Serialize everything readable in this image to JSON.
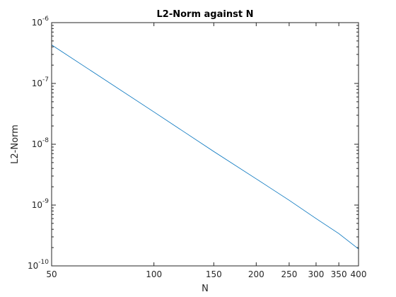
{
  "chart_data": {
    "type": "line",
    "title": "L2-Norm against N",
    "xlabel": "N",
    "ylabel": "L2-Norm",
    "xscale": "log",
    "yscale": "log",
    "xlim": [
      50,
      400
    ],
    "ylim": [
      1e-10,
      1e-06
    ],
    "xticks": [
      {
        "value": 50,
        "label": "50"
      },
      {
        "value": 100,
        "label": "100"
      },
      {
        "value": 150,
        "label": "150"
      },
      {
        "value": 200,
        "label": "200"
      },
      {
        "value": 250,
        "label": "250"
      },
      {
        "value": 300,
        "label": "300"
      },
      {
        "value": 350,
        "label": "350"
      },
      {
        "value": 400,
        "label": "400"
      }
    ],
    "yticks": [
      {
        "value": 1e-10,
        "base": "10",
        "exp": "-10"
      },
      {
        "value": 1e-09,
        "base": "10",
        "exp": "-9"
      },
      {
        "value": 1e-08,
        "base": "10",
        "exp": "-8"
      },
      {
        "value": 1e-07,
        "base": "10",
        "exp": "-7"
      },
      {
        "value": 1e-06,
        "base": "10",
        "exp": "-6"
      }
    ],
    "grid": false,
    "legend": "none",
    "line_color": "#0072bd",
    "series": [
      {
        "x": [
          50,
          100,
          150,
          200,
          250,
          300,
          350,
          400
        ],
        "values": [
          4.3e-07,
          3.4e-08,
          7.6e-09,
          2.7e-09,
          1.2e-09,
          6e-10,
          3.4e-10,
          1.9e-10
        ]
      }
    ]
  }
}
